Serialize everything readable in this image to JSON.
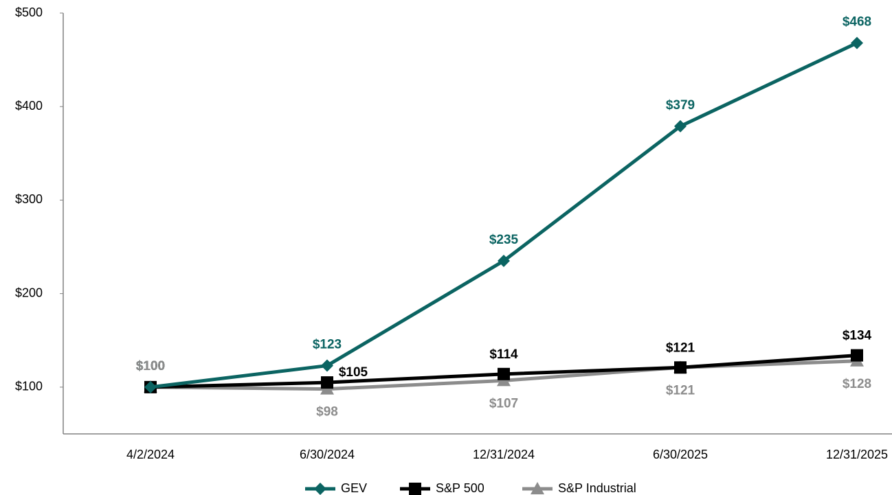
{
  "chart_data": {
    "type": "line",
    "categories": [
      "4/2/2024",
      "6/30/2024",
      "12/31/2024",
      "6/30/2025",
      "12/31/2025"
    ],
    "series": [
      {
        "name": "GEV",
        "color": "#0b6462",
        "marker": "diamond",
        "values": [
          100,
          123,
          235,
          379,
          468
        ],
        "value_labels": [
          "$100",
          "$123",
          "$235",
          "$379",
          "$468"
        ]
      },
      {
        "name": "S&P 500",
        "color": "#000000",
        "marker": "square",
        "values": [
          100,
          105,
          114,
          121,
          134
        ],
        "value_labels": [
          "$100",
          "$105",
          "$114",
          "$121",
          "$134"
        ]
      },
      {
        "name": "S&P Industrial",
        "color": "#8c8c8c",
        "marker": "triangle",
        "values": [
          100,
          98,
          107,
          121,
          128
        ],
        "value_labels": [
          "$100",
          "$98",
          "$107",
          "$121",
          "$128"
        ]
      }
    ],
    "ylim": [
      50,
      500
    ],
    "yticks": [
      {
        "value": 100,
        "label": "$100"
      },
      {
        "value": 200,
        "label": "$200"
      },
      {
        "value": 300,
        "label": "$300"
      },
      {
        "value": 400,
        "label": "$400"
      },
      {
        "value": 500,
        "label": "$500"
      }
    ],
    "legend": "bottom"
  }
}
